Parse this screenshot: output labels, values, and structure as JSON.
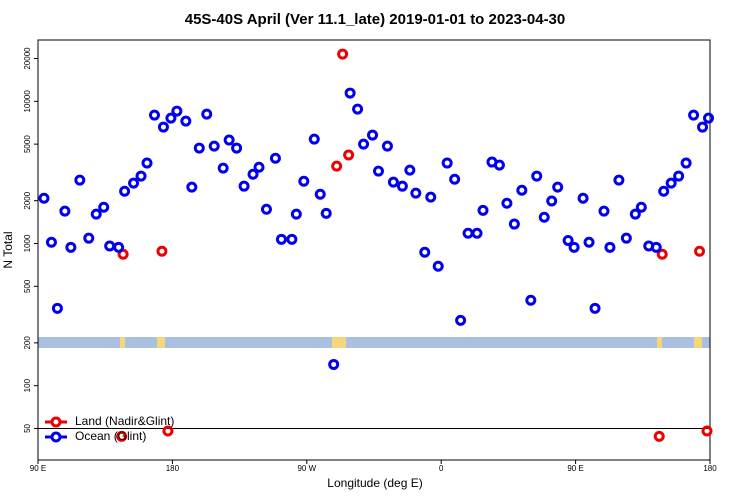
{
  "chart_data": {
    "type": "scatter",
    "title": "45S-40S April (Ver 11.1_late)   2019-01-01 to 2023-04-30",
    "x_label": "Longitude (deg E)",
    "y_label": "N Total",
    "xlim": [
      90,
      540
    ],
    "ylim": [
      30,
      27000
    ],
    "log_y": true,
    "xticks": [
      {
        "value": 90,
        "label": "90 E"
      },
      180,
      {
        "value": 270,
        "label": "90 W"
      },
      {
        "value": 360,
        "label": "0"
      },
      {
        "value": 450,
        "label": "90 E"
      },
      {
        "value": 540,
        "label": "180"
      }
    ],
    "yticks": [
      50,
      100,
      200,
      500,
      1000,
      2000,
      5000,
      10000,
      20000
    ],
    "hline": 50,
    "legend": "bottom left",
    "series": [
      {
        "name": "Land (Nadir&Glint)",
        "color": "#ee0000",
        "x": [
          147,
          173,
          146,
          177,
          290,
          294,
          298,
          508,
          533,
          506,
          538
        ],
        "values": [
          840,
          882,
          44,
          48,
          3500,
          21500,
          4190,
          840,
          882,
          44,
          48
        ]
      },
      {
        "name": "Ocean (Glint)",
        "color": "#0000ee",
        "x": [
          94,
          99,
          103,
          108,
          112,
          118,
          124,
          129,
          134,
          138,
          144,
          148,
          154,
          159,
          163,
          168,
          174,
          179,
          183,
          189,
          193,
          198,
          203,
          208,
          214,
          218,
          223,
          228,
          234,
          238,
          243,
          249,
          253,
          260,
          263,
          268,
          275,
          279,
          283,
          288,
          299,
          304,
          308,
          314,
          318,
          324,
          328,
          334,
          339,
          343,
          349,
          353,
          358,
          364,
          369,
          373,
          378,
          384,
          388,
          394,
          399,
          404,
          409,
          414,
          420,
          424,
          429,
          434,
          438,
          445,
          449,
          455,
          459,
          463,
          469,
          473,
          479,
          484,
          490,
          494,
          499,
          504,
          509,
          514,
          519,
          524,
          529,
          535,
          539
        ],
        "values": [
          2080,
          1020,
          350,
          1690,
          940,
          2790,
          1090,
          1610,
          1800,
          960,
          940,
          2330,
          2660,
          2980,
          3680,
          8000,
          6590,
          7620,
          8540,
          7260,
          2490,
          4690,
          8130,
          4840,
          3390,
          5340,
          4690,
          2530,
          3070,
          3440,
          1740,
          3980,
          1070,
          1070,
          1610,
          2740,
          5420,
          2220,
          1630,
          141,
          11430,
          8820,
          5000,
          5790,
          3230,
          4840,
          2700,
          2530,
          3280,
          2260,
          868,
          2120,
          692,
          3680,
          2830,
          288,
          1180,
          1180,
          1710,
          3740,
          3560,
          1920,
          1370,
          2370,
          399,
          2980,
          1530,
          1990,
          2490,
          1050,
          940,
          2080,
          1020,
          350,
          1690,
          940,
          2790,
          1090,
          1610,
          1800,
          960,
          940,
          2330,
          2660,
          2980,
          3680,
          8000,
          6590,
          7620
        ]
      }
    ]
  }
}
